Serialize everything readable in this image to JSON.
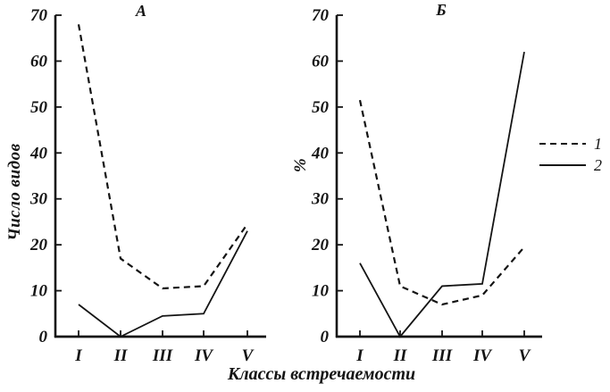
{
  "figure": {
    "background": "#ffffff",
    "ink": "#141414",
    "xlabel": "Классы встречаемости",
    "legend": {
      "items": [
        {
          "label": "1",
          "style": "dashed"
        },
        {
          "label": "2",
          "style": "solid"
        }
      ]
    }
  },
  "chart_data": [
    {
      "type": "line",
      "title": "А",
      "ylabel": "Число видов",
      "xlabel": "Классы встречаемости",
      "categories": [
        "I",
        "II",
        "III",
        "IV",
        "V"
      ],
      "ylim": [
        0,
        70
      ],
      "ytick_step": 10,
      "grid": false,
      "legend_position": "outside-right-of-figure",
      "series": [
        {
          "name": "1",
          "style": "dashed",
          "values": [
            68,
            17,
            10.5,
            11,
            24.5
          ]
        },
        {
          "name": "2",
          "style": "solid",
          "values": [
            7,
            0,
            4.5,
            5,
            23
          ]
        }
      ]
    },
    {
      "type": "line",
      "title": "Б",
      "ylabel": "%",
      "xlabel": "Классы встречаемости",
      "categories": [
        "I",
        "II",
        "III",
        "IV",
        "V"
      ],
      "ylim": [
        0,
        70
      ],
      "ytick_step": 10,
      "grid": false,
      "legend_position": "outside-right-of-figure",
      "series": [
        {
          "name": "1",
          "style": "dashed",
          "values": [
            51.5,
            11,
            7,
            9,
            19.5
          ]
        },
        {
          "name": "2",
          "style": "solid",
          "values": [
            16,
            0,
            11,
            11.5,
            62
          ]
        }
      ]
    }
  ]
}
